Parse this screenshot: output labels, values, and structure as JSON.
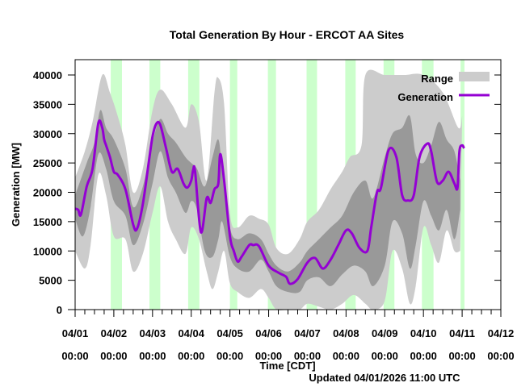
{
  "chart_data": {
    "type": "area",
    "title": "Total Generation By Hour - ERCOT AA Sites",
    "xlabel": "Time [CDT]",
    "ylabel": "Generation [MW]",
    "footer": "Updated 04/01/2026 11:00 UTC",
    "ylim": [
      0,
      42000
    ],
    "xlim_days": [
      0,
      11
    ],
    "y_ticks": [
      "0",
      "5000",
      "10000",
      "15000",
      "20000",
      "25000",
      "30000",
      "35000",
      "40000"
    ],
    "y_tick_values": [
      0,
      5000,
      10000,
      15000,
      20000,
      25000,
      30000,
      35000,
      40000
    ],
    "x_ticks": [
      {
        "date": "04/01",
        "time": "00:00"
      },
      {
        "date": "04/02",
        "time": "00:00"
      },
      {
        "date": "04/03",
        "time": "00:00"
      },
      {
        "date": "04/04",
        "time": "00:00"
      },
      {
        "date": "04/05",
        "time": "00:00"
      },
      {
        "date": "04/06",
        "time": "00:00"
      },
      {
        "date": "04/07",
        "time": "00:00"
      },
      {
        "date": "04/08",
        "time": "00:00"
      },
      {
        "date": "04/09",
        "time": "00:00"
      },
      {
        "date": "04/10",
        "time": "00:00"
      },
      {
        "date": "04/11",
        "time": "00:00"
      },
      {
        "date": "04/12",
        "time": "00:00"
      }
    ],
    "legend": [
      {
        "label": "Range",
        "color": "#c8c8c8",
        "kind": "area"
      },
      {
        "label": "Generation",
        "color": "#9400d3",
        "kind": "line"
      }
    ],
    "legend_position": "top-right",
    "colors": {
      "outer_range": "#cccccc",
      "inner_range": "#999999",
      "generation": "#9400d3",
      "daytime": "#ccffcc"
    },
    "daytime_bands_days": [
      [
        0.92,
        1.21
      ],
      [
        1.92,
        2.2
      ],
      [
        2.92,
        3.21
      ],
      [
        4.0,
        4.19
      ],
      [
        4.98,
        5.19
      ],
      [
        5.98,
        6.25
      ],
      [
        6.98,
        7.25
      ],
      [
        7.97,
        8.25
      ],
      [
        8.96,
        9.26
      ],
      [
        9.96,
        10.06
      ]
    ],
    "series": [
      {
        "name": "Generation",
        "x_days": [
          0.0,
          0.08,
          0.15,
          0.3,
          0.45,
          0.6,
          0.7,
          0.75,
          0.8,
          0.9,
          1.0,
          1.1,
          1.3,
          1.5,
          1.6,
          1.75,
          1.9,
          2.0,
          2.1,
          2.2,
          2.35,
          2.5,
          2.65,
          2.8,
          2.9,
          3.0,
          3.05,
          3.1,
          3.25,
          3.4,
          3.5,
          3.6,
          3.7,
          3.75,
          3.85,
          4.0,
          4.1,
          4.2,
          4.3,
          4.5,
          4.6,
          4.75,
          5.0,
          5.25,
          5.45,
          5.55,
          5.75,
          6.0,
          6.2,
          6.4,
          6.6,
          6.8,
          7.0,
          7.15,
          7.35,
          7.55,
          7.65,
          7.8,
          7.9,
          8.1,
          8.3,
          8.45,
          8.6,
          8.75,
          8.9,
          9.1,
          9.2,
          9.35,
          9.5,
          9.65,
          9.8,
          9.88,
          9.93,
          10.0,
          10.05
        ],
        "values": [
          17200,
          17000,
          16200,
          21000,
          24000,
          31800,
          31000,
          29000,
          28000,
          26000,
          23500,
          23000,
          20500,
          14500,
          13800,
          18000,
          25000,
          29500,
          31700,
          31500,
          27500,
          23500,
          24000,
          21500,
          20800,
          22000,
          23800,
          23500,
          13200,
          19000,
          18200,
          20500,
          21500,
          26500,
          22000,
          12500,
          10000,
          8200,
          9000,
          11000,
          11000,
          10800,
          7500,
          6300,
          5600,
          4400,
          5200,
          8000,
          8800,
          7000,
          8500,
          11000,
          13500,
          13000,
          10500,
          10000,
          14000,
          20000,
          20700,
          27200,
          26000,
          19500,
          18600,
          19500,
          26000,
          28300,
          27000,
          21800,
          22000,
          23500,
          21500,
          20800,
          27000,
          28000,
          27500
        ]
      },
      {
        "name": "Inner range upper",
        "x_days": [
          0.0,
          0.3,
          0.5,
          0.65,
          0.8,
          1.0,
          1.3,
          1.5,
          1.75,
          2.0,
          2.2,
          2.4,
          2.6,
          2.85,
          3.0,
          3.15,
          3.35,
          3.55,
          3.7,
          3.8,
          4.0,
          4.2,
          4.5,
          4.8,
          5.0,
          5.2,
          5.5,
          5.8,
          6.0,
          6.3,
          6.6,
          6.9,
          7.2,
          7.5,
          7.7,
          8.0,
          8.2,
          8.45,
          8.65,
          8.8,
          9.0,
          9.2,
          9.4,
          9.6,
          9.8,
          9.95
        ],
        "values": [
          19500,
          25000,
          28500,
          34000,
          31000,
          29000,
          24000,
          17500,
          21000,
          28500,
          32500,
          30000,
          28500,
          26000,
          25000,
          24000,
          21000,
          26000,
          29000,
          24000,
          14000,
          12000,
          13000,
          12000,
          9500,
          7500,
          6500,
          8000,
          10000,
          12000,
          14000,
          16000,
          20000,
          22000,
          19000,
          26000,
          30000,
          31000,
          33000,
          26500,
          25000,
          28000,
          32000,
          29000,
          27000,
          22000
        ]
      },
      {
        "name": "Inner range lower",
        "x_days": [
          0.0,
          0.2,
          0.4,
          0.6,
          0.8,
          1.0,
          1.3,
          1.5,
          1.75,
          2.0,
          2.2,
          2.4,
          2.6,
          2.85,
          3.0,
          3.15,
          3.35,
          3.55,
          3.7,
          3.8,
          4.0,
          4.2,
          4.5,
          4.8,
          5.0,
          5.2,
          5.5,
          5.8,
          6.0,
          6.3,
          6.6,
          6.9,
          7.2,
          7.5,
          7.7,
          8.0,
          8.2,
          8.45,
          8.65,
          8.8,
          9.0,
          9.2,
          9.4,
          9.6,
          9.8,
          9.95
        ],
        "values": [
          15500,
          12500,
          17500,
          26500,
          24000,
          18500,
          16000,
          11000,
          14500,
          21500,
          27000,
          22500,
          20000,
          16500,
          18500,
          17000,
          10000,
          9000,
          12000,
          15000,
          9000,
          7000,
          6500,
          8500,
          6500,
          4000,
          3000,
          3000,
          5000,
          5500,
          4000,
          6000,
          7500,
          6500,
          4000,
          7500,
          15000,
          13000,
          7000,
          11000,
          18500,
          16000,
          13500,
          17000,
          12000,
          17000
        ]
      },
      {
        "name": "Outer range upper",
        "x_days": [
          0.0,
          0.25,
          0.45,
          0.7,
          0.9,
          1.1,
          1.3,
          1.5,
          1.75,
          2.0,
          2.2,
          2.5,
          2.85,
          3.0,
          3.2,
          3.4,
          3.6,
          3.7,
          3.85,
          4.0,
          4.2,
          4.5,
          4.75,
          5.0,
          5.2,
          5.5,
          5.8,
          6.0,
          6.3,
          6.6,
          6.9,
          7.1,
          7.4,
          7.5,
          8.0,
          8.5,
          9.0,
          9.5,
          9.9,
          10.0
        ],
        "values": [
          22500,
          27000,
          32000,
          40000,
          37000,
          33000,
          28000,
          20000,
          24000,
          34000,
          37500,
          35000,
          31000,
          35000,
          32000,
          22000,
          37000,
          39500,
          35000,
          16500,
          14000,
          16000,
          15500,
          14500,
          10500,
          9500,
          12000,
          15000,
          17000,
          20500,
          23500,
          26000,
          28000,
          40000,
          40000,
          40000,
          40000,
          37000,
          31000,
          33000
        ]
      },
      {
        "name": "Outer range lower",
        "x_days": [
          0.0,
          0.25,
          0.4,
          0.6,
          0.8,
          1.0,
          1.3,
          1.5,
          1.75,
          2.0,
          2.2,
          2.4,
          2.6,
          2.85,
          3.0,
          3.2,
          3.4,
          3.55,
          3.7,
          3.85,
          4.0,
          4.2,
          4.5,
          4.8,
          5.0,
          5.2,
          5.5,
          5.8,
          6.0,
          6.3,
          6.6,
          6.9,
          7.2,
          7.5,
          7.7,
          8.0,
          8.2,
          8.45,
          8.65,
          8.8,
          9.0,
          9.2,
          9.4,
          9.6,
          9.8,
          9.95
        ],
        "values": [
          10000,
          7000,
          11000,
          23000,
          19500,
          12500,
          12000,
          6500,
          9500,
          16500,
          21000,
          15000,
          12000,
          9500,
          14000,
          12000,
          6500,
          3500,
          6500,
          10000,
          4500,
          3000,
          2000,
          3500,
          2000,
          0,
          0,
          0,
          1000,
          500,
          0,
          1000,
          2500,
          1000,
          0,
          1500,
          10000,
          7000,
          1000,
          4000,
          14000,
          11000,
          8000,
          13500,
          10000,
          10000
        ]
      }
    ]
  }
}
